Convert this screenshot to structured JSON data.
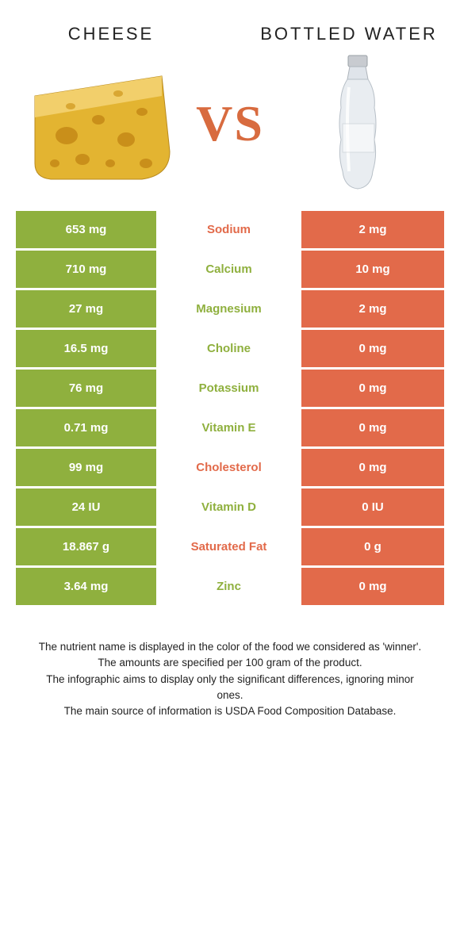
{
  "colors": {
    "green": "#8fb03e",
    "orange": "#e26a4a",
    "vs_color": "#d86b3f"
  },
  "item_a": {
    "title": "Cheese"
  },
  "item_b": {
    "title": "Bottled Water"
  },
  "vs_label": "VS",
  "rows": [
    {
      "left": "653 mg",
      "label": "Sodium",
      "right": "2 mg",
      "winner": "b"
    },
    {
      "left": "710 mg",
      "label": "Calcium",
      "right": "10 mg",
      "winner": "a"
    },
    {
      "left": "27 mg",
      "label": "Magnesium",
      "right": "2 mg",
      "winner": "a"
    },
    {
      "left": "16.5 mg",
      "label": "Choline",
      "right": "0 mg",
      "winner": "a"
    },
    {
      "left": "76 mg",
      "label": "Potassium",
      "right": "0 mg",
      "winner": "a"
    },
    {
      "left": "0.71 mg",
      "label": "Vitamin E",
      "right": "0 mg",
      "winner": "a"
    },
    {
      "left": "99 mg",
      "label": "Cholesterol",
      "right": "0 mg",
      "winner": "b"
    },
    {
      "left": "24 IU",
      "label": "Vitamin D",
      "right": "0 IU",
      "winner": "a"
    },
    {
      "left": "18.867 g",
      "label": "Saturated Fat",
      "right": "0 g",
      "winner": "b"
    },
    {
      "left": "3.64 mg",
      "label": "Zinc",
      "right": "0 mg",
      "winner": "a"
    }
  ],
  "footnotes": [
    "The nutrient name is displayed in the color of the food we considered as 'winner'.",
    "The amounts are specified per 100 gram of the product.",
    "The infographic aims to display only the significant differences, ignoring minor ones.",
    "The main source of information is USDA Food Composition Database."
  ]
}
